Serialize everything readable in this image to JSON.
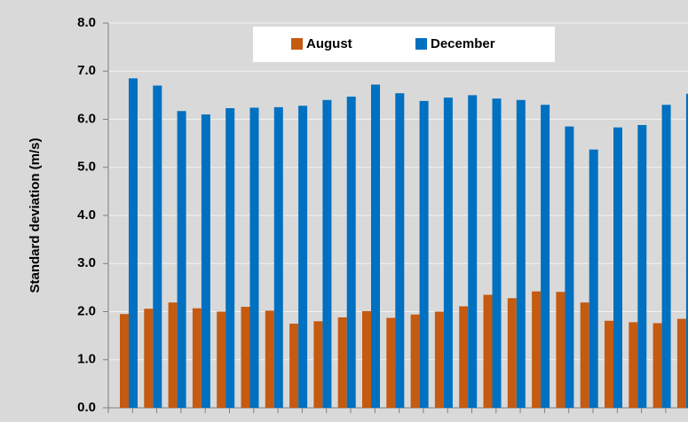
{
  "chart_data": {
    "type": "bar",
    "y_label": "Standard deviation (m/s)",
    "categories": [
      null,
      null,
      null,
      null,
      null,
      null,
      null,
      null,
      null,
      null,
      null,
      null,
      null,
      null,
      null,
      null,
      null,
      null,
      null,
      null,
      null,
      null,
      null,
      null
    ],
    "series": [
      {
        "name": "August",
        "color": "#c55a11",
        "values": [
          1.95,
          2.06,
          2.19,
          2.07,
          2.0,
          2.1,
          2.02,
          1.75,
          1.8,
          1.88,
          2.01,
          1.87,
          1.94,
          2.0,
          2.11,
          2.35,
          2.28,
          2.42,
          2.41,
          2.19,
          1.81,
          1.78,
          1.76,
          1.85
        ]
      },
      {
        "name": "December",
        "color": "#0070c0",
        "values": [
          6.85,
          6.7,
          6.17,
          6.1,
          6.23,
          6.24,
          6.25,
          6.28,
          6.4,
          6.47,
          6.72,
          6.54,
          6.38,
          6.45,
          6.5,
          6.43,
          6.4,
          6.3,
          5.85,
          5.37,
          5.83,
          5.88,
          6.3,
          6.53
        ]
      }
    ],
    "ylim": [
      0,
      8
    ],
    "yticks": [
      {
        "value": 0,
        "label": "0.0"
      },
      {
        "value": 1,
        "label": "1.0"
      },
      {
        "value": 2,
        "label": "2.0"
      },
      {
        "value": 3,
        "label": "3.0"
      },
      {
        "value": 4,
        "label": "4.0"
      },
      {
        "value": 5,
        "label": "5.0"
      },
      {
        "value": 6,
        "label": "6.0"
      },
      {
        "value": 7,
        "label": "7.0"
      },
      {
        "value": 8,
        "label": "8.0"
      }
    ],
    "grid": true,
    "legend": "top"
  }
}
